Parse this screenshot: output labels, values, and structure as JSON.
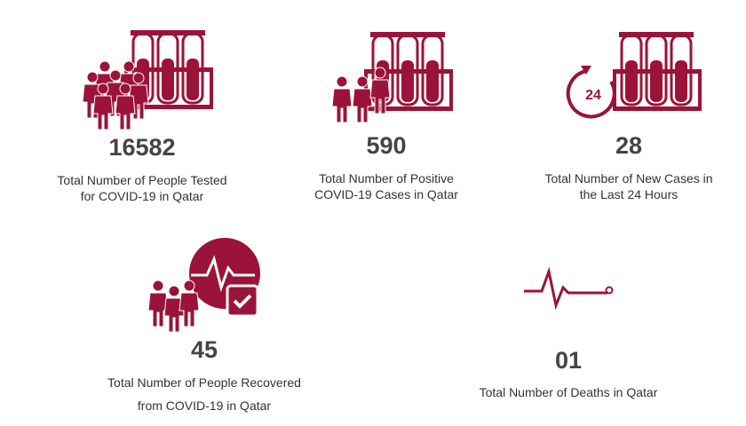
{
  "stats": [
    {
      "value": 16582,
      "label": [
        "Total Number of People Tested",
        "for COVID-19 in Qatar"
      ]
    },
    {
      "value": 590,
      "label": [
        "Total Number of Positive",
        "COVID-19 Cases in Qatar"
      ]
    },
    {
      "value": 28,
      "label": [
        "Total Number of New Cases in",
        "the Last 24 Hours"
      ]
    },
    {
      "value": 45,
      "label": [
        "Total Number of People Recovered",
        "from COVID-19 in Qatar"
      ]
    },
    {
      "value": "01",
      "label": [
        "Total Number of Deaths in Qatar"
      ]
    }
  ],
  "icon_text": "24"
}
